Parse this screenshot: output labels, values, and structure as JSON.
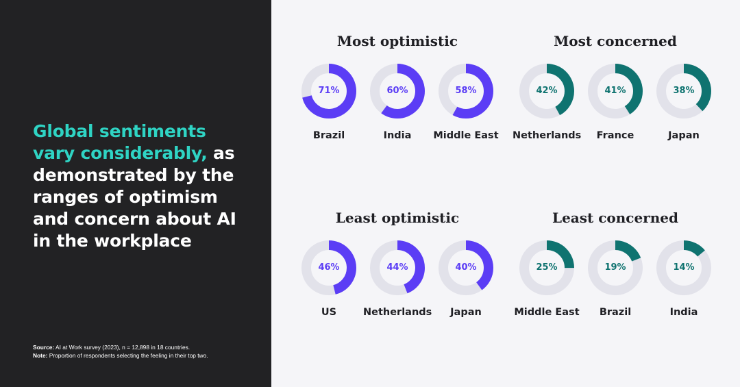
{
  "headline": {
    "highlight": "Global sentiments vary considerably,",
    "rest": " as demonstrated by the ranges of optimism and concern about AI in the workplace"
  },
  "footnotes": {
    "source_label": "Source:",
    "source_text": " AI at Work survey (2023), n = 12,898 in 18 countries.",
    "note_label": "Note:",
    "note_text": " Proportion of respondents selecting the feeling in their top two."
  },
  "colors": {
    "optimism": "#5b3df5",
    "concern": "#0f7370",
    "track": "#e2e2ea",
    "highlight_text": "#2fd4c4"
  },
  "chart_data": [
    {
      "type": "pie",
      "subtype": "donut",
      "title": "Most optimistic",
      "color_key": "optimism",
      "categories": [
        "Brazil",
        "India",
        "Middle East"
      ],
      "values": [
        71,
        60,
        58
      ],
      "value_labels": [
        "71%",
        "60%",
        "58%"
      ]
    },
    {
      "type": "pie",
      "subtype": "donut",
      "title": "Most concerned",
      "color_key": "concern",
      "categories": [
        "Netherlands",
        "France",
        "Japan"
      ],
      "values": [
        42,
        41,
        38
      ],
      "value_labels": [
        "42%",
        "41%",
        "38%"
      ]
    },
    {
      "type": "pie",
      "subtype": "donut",
      "title": "Least optimistic",
      "color_key": "optimism",
      "categories": [
        "US",
        "Netherlands",
        "Japan"
      ],
      "values": [
        46,
        44,
        40
      ],
      "value_labels": [
        "46%",
        "44%",
        "40%"
      ]
    },
    {
      "type": "pie",
      "subtype": "donut",
      "title": "Least concerned",
      "color_key": "concern",
      "categories": [
        "Middle East",
        "Brazil",
        "India"
      ],
      "values": [
        25,
        19,
        14
      ],
      "value_labels": [
        "25%",
        "19%",
        "14%"
      ]
    }
  ]
}
